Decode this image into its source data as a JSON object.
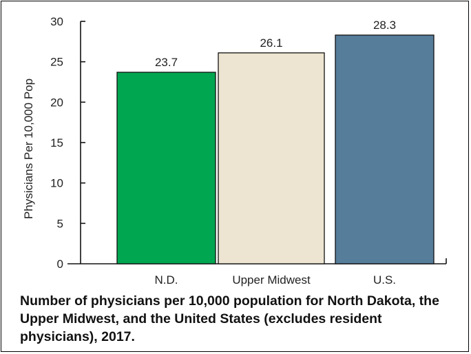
{
  "chart_data": {
    "type": "bar",
    "categories": [
      "N.D.",
      "Upper Midwest",
      "U.S."
    ],
    "values": [
      23.7,
      26.1,
      28.3
    ],
    "value_labels": [
      "23.7",
      "26.1",
      "28.3"
    ],
    "bar_colors": [
      "#00a650",
      "#ede5d1",
      "#567d9a"
    ],
    "ylabel": "Physicians Per 10,000 Pop",
    "ylim": [
      0,
      30
    ],
    "yticks": [
      0,
      5,
      10,
      15,
      20,
      25,
      30
    ],
    "grid": false,
    "legend": "none",
    "caption": "Number of physicians per 10,000 population for North Dakota, the Upper Midwest, and the United States (excludes resident physicians), 2017."
  }
}
